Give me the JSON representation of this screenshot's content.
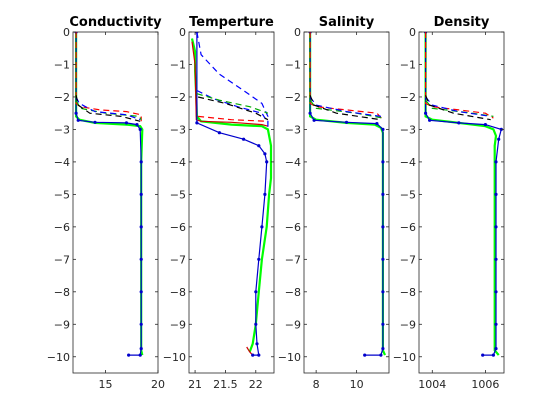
{
  "chart_data": [
    {
      "type": "line",
      "title": "Conductivity",
      "xlabel": "",
      "ylabel": "",
      "xlim": [
        11.9,
        20.0
      ],
      "ylim": [
        -10.5,
        0
      ],
      "xticks": [
        15,
        20
      ],
      "yticks": [
        0,
        -1,
        -2,
        -3,
        -4,
        -5,
        -6,
        -7,
        -8,
        -9,
        -10
      ],
      "series": [
        {
          "color": "#00ff00",
          "style": "solid",
          "values": [
            [
              12.2,
              0
            ],
            [
              12.2,
              -2.6
            ],
            [
              12.5,
              -2.7
            ],
            [
              14.0,
              -2.8
            ],
            [
              17.0,
              -2.85
            ],
            [
              18.3,
              -2.9
            ],
            [
              18.5,
              -3.0
            ],
            [
              18.4,
              -4.0
            ],
            [
              18.4,
              -6.0
            ],
            [
              18.4,
              -8.0
            ],
            [
              18.4,
              -9.0
            ],
            [
              18.4,
              -9.8
            ],
            [
              18.5,
              -9.95
            ]
          ]
        },
        {
          "color": "#0000cc",
          "style": "solid-dots",
          "values": [
            [
              12.2,
              0
            ],
            [
              12.2,
              -2.5
            ],
            [
              12.4,
              -2.72
            ],
            [
              14.0,
              -2.78
            ],
            [
              17.0,
              -2.8
            ],
            [
              18.0,
              -2.85
            ],
            [
              18.3,
              -3.0
            ],
            [
              18.4,
              -4.0
            ],
            [
              18.4,
              -5.0
            ],
            [
              18.4,
              -6.0
            ],
            [
              18.4,
              -7.0
            ],
            [
              18.4,
              -8.0
            ],
            [
              18.4,
              -9.0
            ],
            [
              18.4,
              -9.75
            ],
            [
              18.3,
              -9.95
            ],
            [
              17.2,
              -9.95
            ]
          ]
        },
        {
          "color": "#ff0000",
          "style": "dashed",
          "values": [
            [
              12.2,
              0
            ],
            [
              12.2,
              -2.2
            ],
            [
              12.6,
              -2.3
            ],
            [
              14.5,
              -2.4
            ],
            [
              17.0,
              -2.45
            ],
            [
              18.4,
              -2.55
            ],
            [
              18.4,
              -2.75
            ]
          ]
        },
        {
          "color": "#00aa00",
          "style": "dashed",
          "values": [
            [
              12.2,
              -2.1
            ],
            [
              12.6,
              -2.35
            ],
            [
              15.0,
              -2.5
            ],
            [
              18.2,
              -2.6
            ],
            [
              18.4,
              -2.7
            ]
          ]
        },
        {
          "color": "#0000ff",
          "style": "dashed",
          "values": [
            [
              12.2,
              -2.0
            ],
            [
              12.5,
              -2.2
            ],
            [
              14.0,
              -2.45
            ],
            [
              17.0,
              -2.55
            ],
            [
              18.3,
              -2.7
            ]
          ]
        },
        {
          "color": "#000000",
          "style": "dashed",
          "values": [
            [
              12.2,
              -1.95
            ],
            [
              12.4,
              -2.25
            ],
            [
              13.5,
              -2.5
            ],
            [
              16.5,
              -2.6
            ],
            [
              18.3,
              -2.75
            ]
          ]
        }
      ]
    },
    {
      "type": "line",
      "title": "Temperture",
      "xlabel": "",
      "ylabel": "",
      "xlim": [
        20.9,
        22.3
      ],
      "ylim": [
        -10.5,
        0
      ],
      "xticks": [
        21,
        21.5,
        22
      ],
      "yticks": [
        0,
        -1,
        -2,
        -3,
        -4,
        -5,
        -6,
        -7,
        -8,
        -9,
        -10
      ],
      "series": [
        {
          "color": "#00ff00",
          "style": "solid",
          "values": [
            [
              20.95,
              -0.2
            ],
            [
              21.0,
              -0.6
            ],
            [
              21.0,
              -1.2
            ],
            [
              21.02,
              -2.0
            ],
            [
              21.03,
              -2.6
            ],
            [
              21.1,
              -2.75
            ],
            [
              21.6,
              -2.85
            ],
            [
              22.1,
              -2.9
            ],
            [
              22.2,
              -3.0
            ],
            [
              22.25,
              -3.5
            ],
            [
              22.25,
              -4.5
            ],
            [
              22.22,
              -5.0
            ],
            [
              22.18,
              -6.0
            ],
            [
              22.1,
              -7.0
            ],
            [
              22.05,
              -8.0
            ],
            [
              22.0,
              -9.0
            ],
            [
              21.95,
              -9.6
            ],
            [
              21.9,
              -9.85
            ]
          ]
        },
        {
          "color": "#cc0000",
          "style": "solid",
          "values": [
            [
              20.95,
              -0.3
            ],
            [
              21.0,
              -1.0
            ],
            [
              21.02,
              -2.7
            ],
            [
              21.1,
              -2.75
            ],
            [
              21.6,
              -2.78
            ],
            [
              22.1,
              -2.85
            ],
            [
              22.2,
              -2.9
            ]
          ]
        },
        {
          "color": "#cc0000",
          "style": "solid",
          "values": [
            [
              21.85,
              -9.7
            ],
            [
              21.9,
              -9.85
            ],
            [
              21.95,
              -9.95
            ]
          ]
        },
        {
          "color": "#0000cc",
          "style": "solid-dots",
          "values": [
            [
              21.03,
              0
            ],
            [
              21.03,
              -2.8
            ],
            [
              21.4,
              -3.1
            ],
            [
              21.8,
              -3.3
            ],
            [
              22.05,
              -3.5
            ],
            [
              22.15,
              -3.75
            ],
            [
              22.18,
              -4.0
            ],
            [
              22.15,
              -5.0
            ],
            [
              22.1,
              -6.0
            ],
            [
              22.05,
              -7.0
            ],
            [
              22.0,
              -8.0
            ],
            [
              22.0,
              -9.0
            ],
            [
              22.02,
              -9.6
            ],
            [
              22.05,
              -9.95
            ],
            [
              21.95,
              -9.95
            ]
          ]
        },
        {
          "color": "#0000ff",
          "style": "dashed",
          "values": [
            [
              21.03,
              0
            ],
            [
              21.1,
              -0.7
            ],
            [
              21.4,
              -1.3
            ],
            [
              21.8,
              -1.8
            ],
            [
              22.1,
              -2.2
            ],
            [
              22.2,
              -2.6
            ],
            [
              22.2,
              -3.0
            ]
          ]
        },
        {
          "color": "#0000ff",
          "style": "dashed",
          "values": [
            [
              21.03,
              -1.8
            ],
            [
              21.3,
              -2.05
            ],
            [
              21.7,
              -2.3
            ],
            [
              22.1,
              -2.5
            ],
            [
              22.2,
              -2.8
            ]
          ]
        },
        {
          "color": "#00aa00",
          "style": "dashed",
          "values": [
            [
              21.03,
              -1.9
            ],
            [
              21.4,
              -2.1
            ],
            [
              21.9,
              -2.3
            ],
            [
              22.2,
              -2.5
            ]
          ]
        },
        {
          "color": "#ff0000",
          "style": "dashed",
          "values": [
            [
              21.05,
              -2.6
            ],
            [
              21.6,
              -2.7
            ],
            [
              22.2,
              -2.75
            ]
          ]
        },
        {
          "color": "#000000",
          "style": "dashed",
          "values": [
            [
              21.05,
              -2.0
            ],
            [
              21.5,
              -2.2
            ],
            [
              22.0,
              -2.5
            ],
            [
              22.2,
              -2.7
            ]
          ]
        }
      ]
    },
    {
      "type": "line",
      "title": "Salinity",
      "xlabel": "",
      "ylabel": "",
      "xlim": [
        7.4,
        11.6
      ],
      "ylim": [
        -10.5,
        0
      ],
      "xticks": [
        8,
        10
      ],
      "yticks": [
        0,
        -1,
        -2,
        -3,
        -4,
        -5,
        -6,
        -7,
        -8,
        -9,
        -10
      ],
      "series": [
        {
          "color": "#00ff00",
          "style": "solid",
          "values": [
            [
              7.7,
              0
            ],
            [
              7.7,
              -2.6
            ],
            [
              8.0,
              -2.7
            ],
            [
              9.5,
              -2.8
            ],
            [
              10.9,
              -2.85
            ],
            [
              11.2,
              -2.95
            ],
            [
              11.3,
              -3.1
            ],
            [
              11.3,
              -4.0
            ],
            [
              11.3,
              -6.0
            ],
            [
              11.3,
              -8.0
            ],
            [
              11.3,
              -9.8
            ],
            [
              11.4,
              -9.95
            ]
          ]
        },
        {
          "color": "#0000cc",
          "style": "solid-dots",
          "values": [
            [
              7.7,
              0
            ],
            [
              7.7,
              -2.5
            ],
            [
              7.9,
              -2.72
            ],
            [
              9.5,
              -2.78
            ],
            [
              11.0,
              -2.82
            ],
            [
              11.3,
              -3.0
            ],
            [
              11.3,
              -4.0
            ],
            [
              11.3,
              -5.0
            ],
            [
              11.3,
              -6.0
            ],
            [
              11.3,
              -7.0
            ],
            [
              11.3,
              -8.0
            ],
            [
              11.3,
              -9.0
            ],
            [
              11.3,
              -9.75
            ],
            [
              11.2,
              -9.95
            ],
            [
              10.4,
              -9.95
            ]
          ]
        },
        {
          "color": "#ff0000",
          "style": "dashed",
          "values": [
            [
              7.7,
              0
            ],
            [
              7.7,
              -2.2
            ],
            [
              8.0,
              -2.3
            ],
            [
              9.5,
              -2.4
            ],
            [
              11.0,
              -2.5
            ],
            [
              11.3,
              -2.7
            ]
          ]
        },
        {
          "color": "#00aa00",
          "style": "dashed",
          "values": [
            [
              7.7,
              -2.1
            ],
            [
              8.0,
              -2.35
            ],
            [
              10.0,
              -2.5
            ],
            [
              11.3,
              -2.65
            ]
          ]
        },
        {
          "color": "#0000ff",
          "style": "dashed",
          "values": [
            [
              7.7,
              -2.0
            ],
            [
              8.0,
              -2.25
            ],
            [
              9.5,
              -2.45
            ],
            [
              11.2,
              -2.6
            ]
          ]
        },
        {
          "color": "#000000",
          "style": "dashed",
          "values": [
            [
              7.7,
              -1.95
            ],
            [
              7.9,
              -2.25
            ],
            [
              9.0,
              -2.5
            ],
            [
              11.2,
              -2.7
            ]
          ]
        }
      ]
    },
    {
      "type": "line",
      "title": "Density",
      "xlabel": "",
      "ylabel": "",
      "xlim": [
        1003.5,
        1006.7
      ],
      "ylim": [
        -10.5,
        0
      ],
      "xticks": [
        1004,
        1006
      ],
      "yticks": [
        0,
        -1,
        -2,
        -3,
        -4,
        -5,
        -6,
        -7,
        -8,
        -9,
        -10
      ],
      "series": [
        {
          "color": "#00ff00",
          "style": "solid",
          "values": [
            [
              1003.75,
              0
            ],
            [
              1003.75,
              -2.6
            ],
            [
              1004.0,
              -2.7
            ],
            [
              1005.0,
              -2.8
            ],
            [
              1006.0,
              -2.9
            ],
            [
              1006.3,
              -3.0
            ],
            [
              1006.4,
              -3.2
            ],
            [
              1006.35,
              -3.5
            ],
            [
              1006.35,
              -5.0
            ],
            [
              1006.35,
              -7.0
            ],
            [
              1006.35,
              -9.0
            ],
            [
              1006.35,
              -9.8
            ],
            [
              1006.5,
              -9.95
            ]
          ]
        },
        {
          "color": "#0000cc",
          "style": "solid-dots",
          "values": [
            [
              1003.75,
              0
            ],
            [
              1003.75,
              -2.5
            ],
            [
              1003.9,
              -2.72
            ],
            [
              1005.0,
              -2.8
            ],
            [
              1006.0,
              -2.85
            ],
            [
              1006.6,
              -3.0
            ],
            [
              1006.5,
              -3.3
            ],
            [
              1006.4,
              -4.0
            ],
            [
              1006.4,
              -5.0
            ],
            [
              1006.4,
              -6.0
            ],
            [
              1006.4,
              -7.0
            ],
            [
              1006.4,
              -8.0
            ],
            [
              1006.4,
              -9.0
            ],
            [
              1006.4,
              -9.75
            ],
            [
              1006.3,
              -9.95
            ],
            [
              1005.9,
              -9.95
            ]
          ]
        },
        {
          "color": "#ff0000",
          "style": "dashed",
          "values": [
            [
              1003.75,
              0
            ],
            [
              1003.75,
              -2.2
            ],
            [
              1004.0,
              -2.3
            ],
            [
              1005.0,
              -2.4
            ],
            [
              1006.0,
              -2.5
            ],
            [
              1006.3,
              -2.65
            ]
          ]
        },
        {
          "color": "#00aa00",
          "style": "dashed",
          "values": [
            [
              1003.75,
              -2.1
            ],
            [
              1004.0,
              -2.35
            ],
            [
              1005.5,
              -2.5
            ],
            [
              1006.3,
              -2.6
            ]
          ]
        },
        {
          "color": "#0000ff",
          "style": "dashed",
          "values": [
            [
              1003.75,
              -2.0
            ],
            [
              1004.0,
              -2.25
            ],
            [
              1005.0,
              -2.45
            ],
            [
              1006.2,
              -2.6
            ]
          ]
        },
        {
          "color": "#000000",
          "style": "dashed",
          "values": [
            [
              1003.75,
              -1.95
            ],
            [
              1003.9,
              -2.25
            ],
            [
              1004.8,
              -2.5
            ],
            [
              1006.2,
              -2.7
            ]
          ]
        }
      ]
    }
  ]
}
